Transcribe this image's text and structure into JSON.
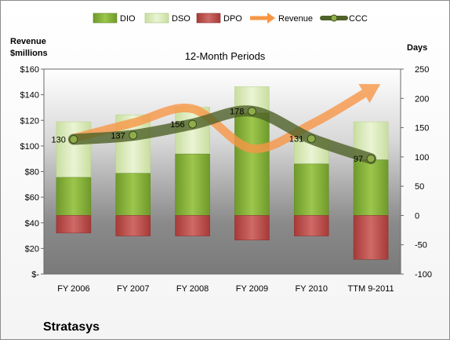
{
  "company": "Stratasys",
  "chart_data": {
    "type": "bar",
    "title": "12-Month Periods",
    "left_axis_label": [
      "Revenue",
      "$millions"
    ],
    "right_axis_label": "Days",
    "categories": [
      "FY 2006",
      "FY 2007",
      "FY 2008",
      "FY 2009",
      "FY 2010",
      "TTM 9-2011"
    ],
    "left_axis": {
      "min": 0,
      "max": 160,
      "ticks": [
        "$-",
        "$20",
        "$40",
        "$60",
        "$80",
        "$100",
        "$120",
        "$140",
        "$160"
      ]
    },
    "right_axis": {
      "min": -100,
      "max": 250,
      "ticks": [
        "-100",
        "-50",
        "0",
        "50",
        "100",
        "150",
        "200",
        "250"
      ]
    },
    "legend": [
      "DIO",
      "DSO",
      "DPO",
      "Revenue",
      "CCC"
    ],
    "legend_position": "top",
    "series": [
      {
        "name": "DIO",
        "axis": "days",
        "type": "stacked-bar",
        "values": [
          65,
          72,
          105,
          175,
          88,
          95
        ]
      },
      {
        "name": "DSO",
        "axis": "days",
        "type": "stacked-bar",
        "values": [
          95,
          100,
          80,
          45,
          43,
          65
        ]
      },
      {
        "name": "DPO",
        "axis": "days",
        "type": "negative-bar",
        "values": [
          -30,
          -35,
          -35,
          -42,
          -35,
          -75
        ]
      },
      {
        "name": "Revenue",
        "axis": "revenue",
        "type": "arrow-line",
        "values": [
          106,
          118,
          129,
          98,
          117,
          144
        ]
      },
      {
        "name": "CCC",
        "axis": "days",
        "type": "line",
        "values": [
          130,
          137,
          156,
          178,
          131,
          97
        ]
      }
    ],
    "ccc_labels": [
      "130",
      "137",
      "156",
      "178",
      "131",
      "97"
    ],
    "colors": {
      "DIO": "#8cb43c",
      "DSO": "#d9ebb3",
      "DPO": "#c0504d",
      "Revenue": "#f79646",
      "CCC": "#4f6228",
      "plot_band": "#8e8e8e"
    }
  }
}
